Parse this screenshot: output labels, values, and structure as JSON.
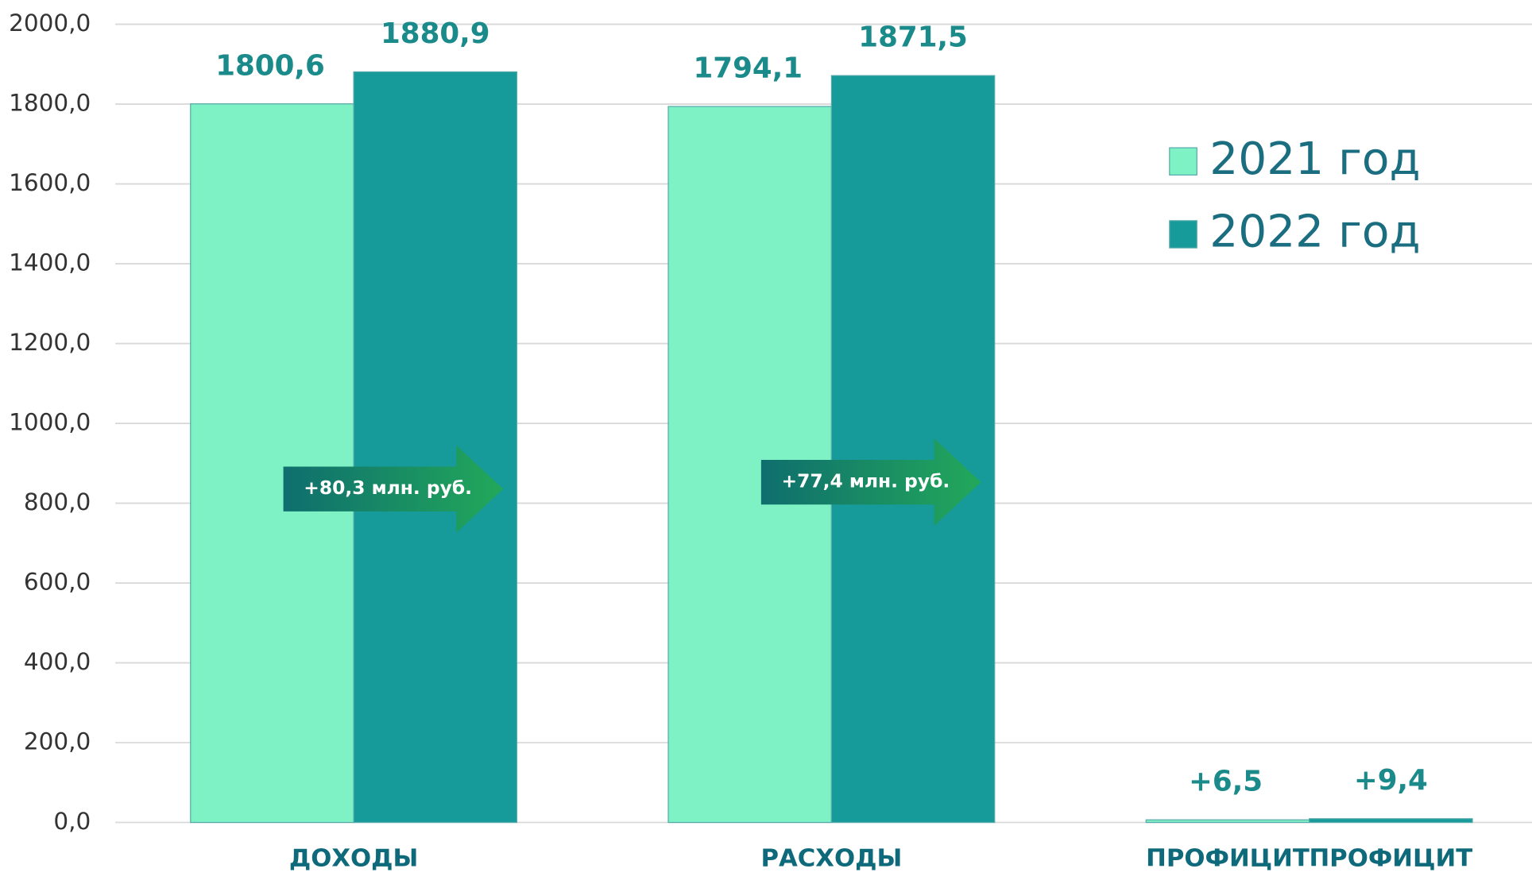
{
  "chart_data": {
    "type": "bar",
    "categories": [
      [
        "ДОХОДЫ"
      ],
      [
        "РАСХОДЫ"
      ],
      [
        "ПРОФИЦИТ",
        "ПРОФИЦИТ"
      ]
    ],
    "series": [
      {
        "name": "2021 год",
        "color": "#7ef2c4",
        "values": [
          1800.6,
          1794.1,
          6.5
        ],
        "value_labels": [
          "1800,6",
          "1794,1",
          "+6,5"
        ]
      },
      {
        "name": "2022 год",
        "color": "#169a9a",
        "values": [
          1880.9,
          1871.5,
          9.4
        ],
        "value_labels": [
          "1880,9",
          "1871,5",
          "+9,4"
        ]
      }
    ],
    "annotations": [
      "+80,3 млн. руб.",
      "+77,4 млн. руб."
    ],
    "ylim": [
      0,
      2000
    ],
    "yticks": [
      {
        "value": 0,
        "label": "0,0"
      },
      {
        "value": 200,
        "label": "200,0"
      },
      {
        "value": 400,
        "label": "400,0"
      },
      {
        "value": 600,
        "label": "600,0"
      },
      {
        "value": 800,
        "label": "800,0"
      },
      {
        "value": 1000,
        "label": "1000,0"
      },
      {
        "value": 1200,
        "label": "1200,0"
      },
      {
        "value": 1400,
        "label": "1400,0"
      },
      {
        "value": 1600,
        "label": "1600,0"
      },
      {
        "value": 1800,
        "label": "1800,0"
      },
      {
        "value": 2000,
        "label": "2000,0"
      }
    ],
    "grid": true,
    "legend": "upper right"
  }
}
